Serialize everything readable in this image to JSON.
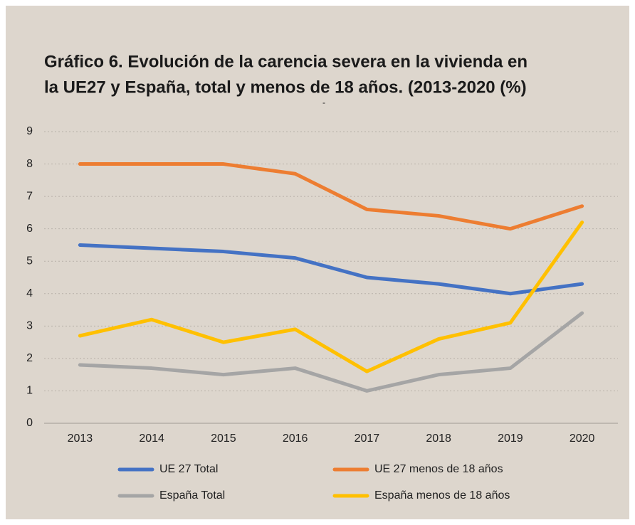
{
  "chart_data": {
    "type": "line",
    "title": [
      "Gráfico 6. Evolución de la carencia severa en la vivienda en",
      "la UE27 y España, total y menos de 18 años. (2013-2020 (%)"
    ],
    "subtitle": "-",
    "categories": [
      "2013",
      "2014",
      "2015",
      "2016",
      "2017",
      "2018",
      "2019",
      "2020"
    ],
    "series": [
      {
        "name": "UE 27 Total",
        "color": "#4472c4",
        "values": [
          5.5,
          5.4,
          5.3,
          5.1,
          4.5,
          4.3,
          4.0,
          4.3
        ]
      },
      {
        "name": "UE 27 menos de 18 años",
        "color": "#ed7d31",
        "values": [
          8.0,
          8.0,
          8.0,
          7.7,
          6.6,
          6.4,
          6.0,
          6.7
        ]
      },
      {
        "name": "España Total",
        "color": "#a5a5a5",
        "values": [
          1.8,
          1.7,
          1.5,
          1.7,
          1.0,
          1.5,
          1.7,
          3.4
        ]
      },
      {
        "name": "España menos de 18 años",
        "color": "#ffc000",
        "values": [
          2.7,
          3.2,
          2.5,
          2.9,
          1.6,
          2.6,
          3.1,
          6.2
        ]
      }
    ],
    "ylim": [
      0,
      9
    ],
    "yticks": [
      0,
      1,
      2,
      3,
      4,
      5,
      6,
      7,
      8,
      9
    ],
    "grid": true,
    "legend": "bottom"
  }
}
